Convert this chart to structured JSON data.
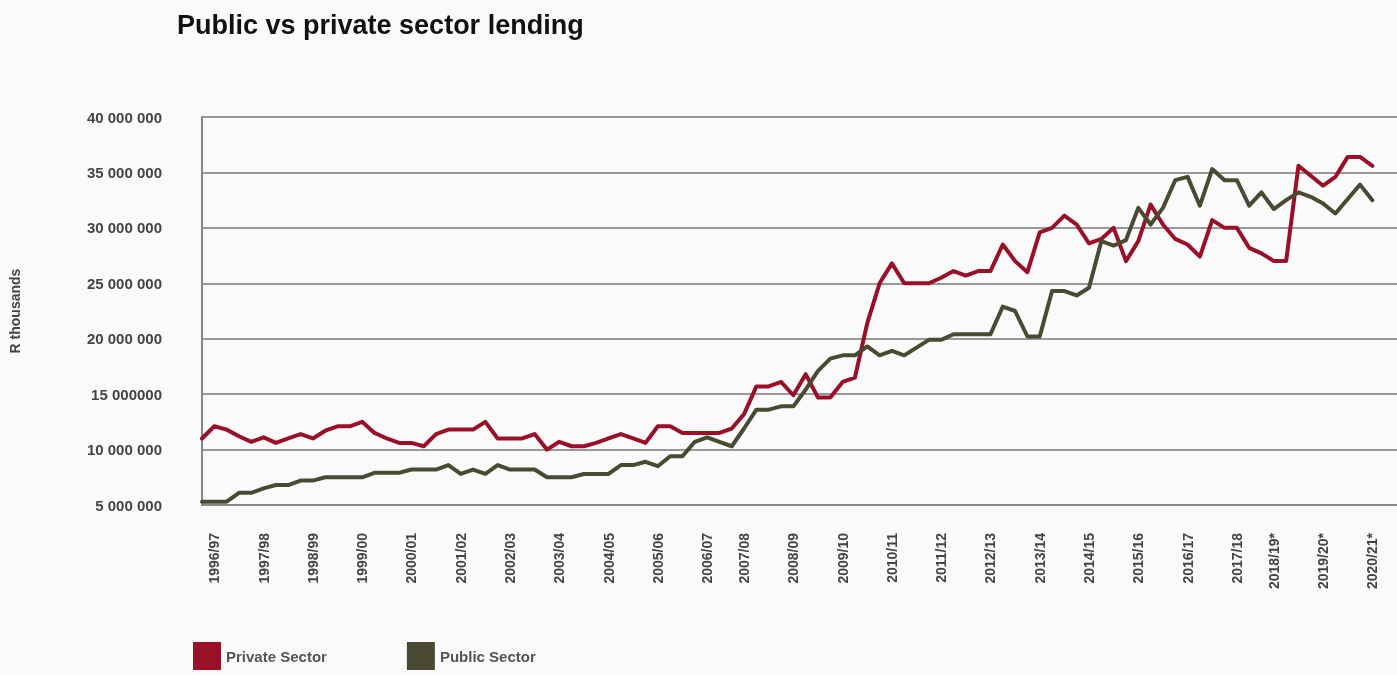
{
  "chart_data": {
    "type": "line",
    "title": "Public vs private sector lending",
    "ylabel": "R thousands",
    "categories": [
      null,
      "1996/97",
      null,
      null,
      null,
      "1997/98",
      null,
      null,
      null,
      "1998/99",
      null,
      null,
      null,
      "1999/00",
      null,
      null,
      null,
      "2000/01",
      null,
      null,
      null,
      "2001/02",
      null,
      null,
      null,
      "2002/03",
      null,
      null,
      null,
      "2003/04",
      null,
      null,
      null,
      "2004/05",
      null,
      null,
      null,
      "2005/06",
      null,
      null,
      null,
      "2006/07",
      null,
      null,
      "2007/08",
      null,
      null,
      null,
      "2008/09",
      null,
      null,
      null,
      "2009/10",
      null,
      null,
      null,
      "2010/11",
      null,
      null,
      null,
      "2011/12",
      null,
      null,
      null,
      "2012/13",
      null,
      null,
      null,
      "2013/14",
      null,
      null,
      null,
      "2014/15",
      null,
      null,
      null,
      "2015/16",
      null,
      null,
      null,
      "2016/17",
      null,
      null,
      null,
      "2017/18",
      null,
      null,
      "2018/19*",
      null,
      null,
      null,
      "2019/20*",
      null,
      null,
      null,
      "2020/21*"
    ],
    "series": [
      {
        "name": "Private Sector",
        "color": "#9b1029",
        "values": [
          11000000,
          12100000,
          11800000,
          11200000,
          10700000,
          11100000,
          10600000,
          11000000,
          11400000,
          11000000,
          11700000,
          12100000,
          12100000,
          12500000,
          11500000,
          11000000,
          10600000,
          10600000,
          10300000,
          11400000,
          11800000,
          11800000,
          11800000,
          12500000,
          11000000,
          11000000,
          11000000,
          11400000,
          10000000,
          10700000,
          10300000,
          10300000,
          10600000,
          11000000,
          11400000,
          11000000,
          10600000,
          12100000,
          12100000,
          11500000,
          11500000,
          11500000,
          11500000,
          11900000,
          13200000,
          15700000,
          15700000,
          16100000,
          14900000,
          16800000,
          14700000,
          14700000,
          16100000,
          16500000,
          21400000,
          25000000,
          26800000,
          25000000,
          25000000,
          25000000,
          25500000,
          26100000,
          25700000,
          26100000,
          26100000,
          28500000,
          27000000,
          26000000,
          29600000,
          30000000,
          31100000,
          30300000,
          28600000,
          29000000,
          30000000,
          27000000,
          28800000,
          32100000,
          30300000,
          29000000,
          28500000,
          27400000,
          30700000,
          30000000,
          30000000,
          28200000,
          27700000,
          27000000,
          27000000,
          35600000,
          34700000,
          33800000,
          34600000,
          36400000,
          36400000,
          35600000
        ]
      },
      {
        "name": "Public Sector",
        "color": "#4a4a32",
        "values": [
          5300000,
          5300000,
          5300000,
          6100000,
          6100000,
          6500000,
          6800000,
          6800000,
          7200000,
          7200000,
          7500000,
          7500000,
          7500000,
          7500000,
          7900000,
          7900000,
          7900000,
          8200000,
          8200000,
          8200000,
          8600000,
          7800000,
          8200000,
          7800000,
          8600000,
          8200000,
          8200000,
          8200000,
          7500000,
          7500000,
          7500000,
          7800000,
          7800000,
          7800000,
          8600000,
          8600000,
          8900000,
          8500000,
          9400000,
          9400000,
          10700000,
          11100000,
          10700000,
          10300000,
          11900000,
          13600000,
          13600000,
          13900000,
          13900000,
          15400000,
          17100000,
          18200000,
          18500000,
          18500000,
          19300000,
          18500000,
          18900000,
          18500000,
          19200000,
          19900000,
          19900000,
          20400000,
          20400000,
          20400000,
          20400000,
          22900000,
          22500000,
          20200000,
          20200000,
          24300000,
          24300000,
          23900000,
          24600000,
          28800000,
          28400000,
          28900000,
          31800000,
          30300000,
          31800000,
          34300000,
          34600000,
          32000000,
          35300000,
          34300000,
          34300000,
          32000000,
          33200000,
          31700000,
          32500000,
          33200000,
          32800000,
          32200000,
          31300000,
          32600000,
          33900000,
          32500000
        ]
      }
    ],
    "ylim": [
      5000000,
      40000000
    ],
    "yticks": [
      {
        "value": 5000000,
        "label": "5 000 000"
      },
      {
        "value": 10000000,
        "label": "10 000 000"
      },
      {
        "value": 15000000,
        "label": "15 000000"
      },
      {
        "value": 20000000,
        "label": "20 000 000"
      },
      {
        "value": 25000000,
        "label": "25 000 000"
      },
      {
        "value": 30000000,
        "label": "30 000 000"
      },
      {
        "value": 35000000,
        "label": "35 000 000"
      },
      {
        "value": 40000000,
        "label": "40 000 000"
      }
    ],
    "grid": "y",
    "legend": "bottom left",
    "marker": "none",
    "line_style": "solid"
  }
}
